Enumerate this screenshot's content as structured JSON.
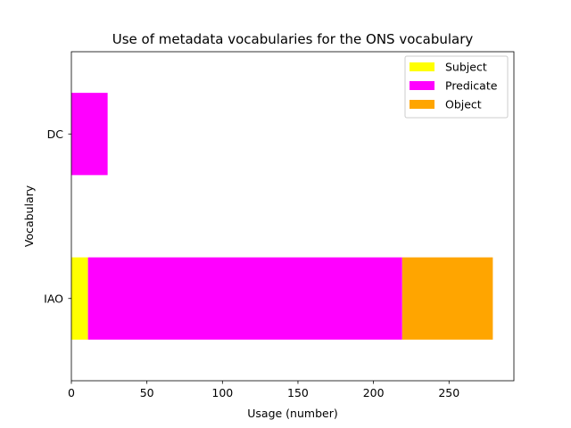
{
  "chart_data": {
    "type": "bar",
    "orientation": "horizontal",
    "stacked": true,
    "title": "Use of metadata vocabularies for the ONS vocabulary",
    "xlabel": "Usage (number)",
    "ylabel": "Vocabulary",
    "categories": [
      "IAO",
      "DC"
    ],
    "series": [
      {
        "name": "Subject",
        "values": [
          11,
          0
        ],
        "color": "#ffff00"
      },
      {
        "name": "Predicate",
        "values": [
          208,
          24
        ],
        "color": "#ff00ff"
      },
      {
        "name": "Object",
        "values": [
          60,
          0
        ],
        "color": "#ffa500"
      }
    ],
    "xlim": [
      0,
      292.95
    ],
    "xticks": [
      0,
      50,
      100,
      150,
      200,
      250
    ],
    "grid": false,
    "legend_position": "top-right"
  }
}
